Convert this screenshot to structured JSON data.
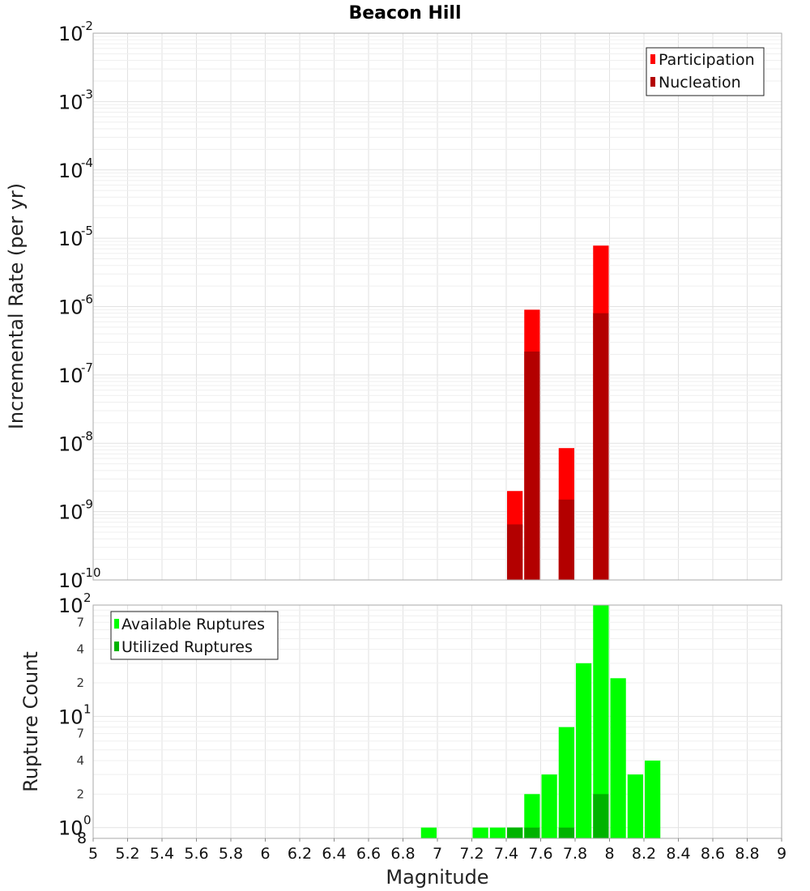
{
  "chart_data": [
    {
      "type": "bar",
      "title": "Beacon Hill",
      "ylabel": "Incremental Rate (per yr)",
      "yscale": "log",
      "ylim": [
        1e-10,
        0.01
      ],
      "xlim": [
        5,
        9
      ],
      "bar_width": 0.1,
      "y_tick_exponents": [
        "-10",
        "-9",
        "-8",
        "-7",
        "-6",
        "-5",
        "-4",
        "-3",
        "-2"
      ],
      "y_tick_base": "10",
      "legend": {
        "position": "top-right",
        "entries": [
          "Participation",
          "Nucleation"
        ]
      },
      "series": [
        {
          "name": "Participation",
          "color": "#ff0000",
          "x": [
            7.45,
            7.55,
            7.75,
            7.95
          ],
          "values": [
            2e-09,
            9e-07,
            8.5e-09,
            7.8e-06
          ]
        },
        {
          "name": "Nucleation",
          "color": "#b30000",
          "x": [
            7.45,
            7.55,
            7.75,
            7.95
          ],
          "values": [
            6.5e-10,
            2.2e-07,
            1.5e-09,
            8e-07
          ]
        }
      ]
    },
    {
      "type": "bar",
      "ylabel": "Rupture Count",
      "xlabel": "Magnitude",
      "yscale": "log",
      "ylim": [
        0.8,
        100
      ],
      "xlim": [
        5,
        9
      ],
      "bar_width": 0.1,
      "x_ticks": [
        "5",
        "5.2",
        "5.4",
        "5.6",
        "5.8",
        "6",
        "6.2",
        "6.4",
        "6.6",
        "6.8",
        "7",
        "7.2",
        "7.4",
        "7.6",
        "7.8",
        "8",
        "8.2",
        "8.4",
        "8.6",
        "8.8",
        "9"
      ],
      "y_tick_base": "10",
      "y_major_exponents": [
        "0",
        "1",
        "2"
      ],
      "y_minor_labels": [
        {
          "value": 2,
          "label": "2"
        },
        {
          "value": 4,
          "label": "4"
        },
        {
          "value": 7,
          "label": "7"
        },
        {
          "value": 20,
          "label": "2"
        },
        {
          "value": 40,
          "label": "4"
        },
        {
          "value": 70,
          "label": "7"
        }
      ],
      "y_bottom_label": "8",
      "legend": {
        "position": "top-left",
        "entries": [
          "Available Ruptures",
          "Utilized Ruptures"
        ]
      },
      "series": [
        {
          "name": "Available Ruptures",
          "color": "#00ff00",
          "x": [
            6.95,
            7.25,
            7.35,
            7.45,
            7.55,
            7.65,
            7.75,
            7.85,
            7.95,
            8.05,
            8.15,
            8.25
          ],
          "values": [
            1,
            1,
            1,
            1,
            2,
            3,
            8,
            30,
            100,
            22,
            3,
            4
          ]
        },
        {
          "name": "Utilized Ruptures",
          "color": "#00b300",
          "x": [
            7.45,
            7.55,
            7.75,
            7.95
          ],
          "values": [
            1,
            1,
            1,
            2
          ]
        }
      ]
    }
  ]
}
